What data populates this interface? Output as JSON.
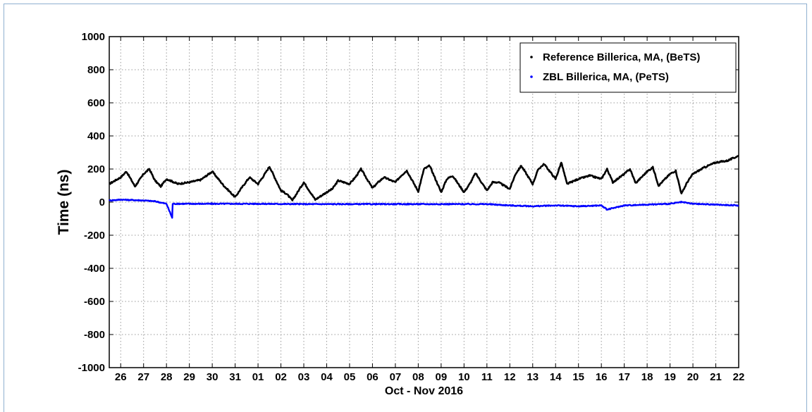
{
  "chart_data": {
    "type": "line",
    "title": "",
    "xlabel": "Oct - Nov 2016",
    "ylabel": "Time (ns)",
    "ylim": [
      -1000,
      1000
    ],
    "y_ticks": [
      1000,
      800,
      600,
      400,
      200,
      0,
      -200,
      -400,
      -600,
      -800,
      -1000
    ],
    "x_tick_labels": [
      "26",
      "27",
      "28",
      "29",
      "30",
      "31",
      "01",
      "02",
      "03",
      "04",
      "05",
      "06",
      "07",
      "08",
      "09",
      "10",
      "11",
      "12",
      "13",
      "14",
      "15",
      "16",
      "17",
      "18",
      "19",
      "20",
      "21",
      "22"
    ],
    "x_range_days": [
      "2016-10-25 12:00",
      "2016-11-22"
    ],
    "grid": true,
    "legend_position": "top-right",
    "series": [
      {
        "name": "Reference Billerica, MA, (BeTS)",
        "color": "#000000",
        "marker": "dot",
        "x": [
          "2016-10-25 12:00",
          "2016-10-26",
          "2016-10-26 06:00",
          "2016-10-26 15:00",
          "2016-10-27",
          "2016-10-27 06:00",
          "2016-10-27 12:00",
          "2016-10-27 18:00",
          "2016-10-28",
          "2016-10-28 12:00",
          "2016-10-29",
          "2016-10-29 12:00",
          "2016-10-29 18:00",
          "2016-10-30",
          "2016-10-30 12:00",
          "2016-10-31",
          "2016-10-31 06:00",
          "2016-10-31 15:00",
          "2016-11-01",
          "2016-11-01 06:00",
          "2016-11-01 12:00",
          "2016-11-02",
          "2016-11-02 06:00",
          "2016-11-02 12:00",
          "2016-11-03",
          "2016-11-03 12:00",
          "2016-11-04",
          "2016-11-04 06:00",
          "2016-11-04 12:00",
          "2016-11-05",
          "2016-11-05 06:00",
          "2016-11-05 12:00",
          "2016-11-06",
          "2016-11-06 06:00",
          "2016-11-06 12:00",
          "2016-11-07",
          "2016-11-07 06:00",
          "2016-11-07 12:00",
          "2016-11-08",
          "2016-11-08 06:00",
          "2016-11-08 12:00",
          "2016-11-09",
          "2016-11-09 06:00",
          "2016-11-09 12:00",
          "2016-11-10",
          "2016-11-10 06:00",
          "2016-11-10 12:00",
          "2016-11-11",
          "2016-11-11 06:00",
          "2016-11-11 12:00",
          "2016-11-12",
          "2016-11-12 06:00",
          "2016-11-12 12:00",
          "2016-11-13",
          "2016-11-13 06:00",
          "2016-11-13 12:00",
          "2016-11-14",
          "2016-11-14 06:00",
          "2016-11-14 12:00",
          "2016-11-15",
          "2016-11-15 12:00",
          "2016-11-16",
          "2016-11-16 06:00",
          "2016-11-16 12:00",
          "2016-11-17",
          "2016-11-17 06:00",
          "2016-11-17 12:00",
          "2016-11-18",
          "2016-11-18 06:00",
          "2016-11-18 12:00",
          "2016-11-19",
          "2016-11-19 06:00",
          "2016-11-19 12:00",
          "2016-11-19 18:00",
          "2016-11-20",
          "2016-11-20 12:00",
          "2016-11-21",
          "2016-11-21 12:00",
          "2016-11-22"
        ],
        "values": [
          110,
          150,
          185,
          95,
          170,
          200,
          130,
          95,
          140,
          110,
          120,
          135,
          160,
          185,
          100,
          30,
          80,
          150,
          110,
          160,
          215,
          70,
          50,
          10,
          120,
          15,
          60,
          80,
          130,
          110,
          150,
          200,
          85,
          120,
          150,
          120,
          160,
          190,
          65,
          200,
          220,
          60,
          140,
          160,
          60,
          110,
          175,
          70,
          120,
          120,
          80,
          170,
          220,
          110,
          200,
          230,
          140,
          240,
          110,
          140,
          160,
          140,
          200,
          120,
          170,
          200,
          115,
          185,
          210,
          100,
          170,
          190,
          50,
          120,
          170,
          210,
          240,
          250,
          280
        ]
      },
      {
        "name": "ZBL Billerica, MA, (PeTS)",
        "color": "#0000ff",
        "marker": "dot",
        "x": [
          "2016-10-25 12:00",
          "2016-10-26",
          "2016-10-27",
          "2016-10-27 12:00",
          "2016-10-28",
          "2016-10-28 06:00",
          "2016-10-28 06:30",
          "2016-10-29",
          "2016-10-30",
          "2016-11-01",
          "2016-11-03",
          "2016-11-05",
          "2016-11-07",
          "2016-11-09",
          "2016-11-11",
          "2016-11-12",
          "2016-11-13",
          "2016-11-14",
          "2016-11-15",
          "2016-11-16",
          "2016-11-16 06:00",
          "2016-11-17",
          "2016-11-18",
          "2016-11-19",
          "2016-11-19 12:00",
          "2016-11-20",
          "2016-11-21",
          "2016-11-22"
        ],
        "values": [
          10,
          15,
          10,
          5,
          -10,
          -95,
          -10,
          -10,
          -10,
          -10,
          -12,
          -12,
          -12,
          -12,
          -12,
          -20,
          -25,
          -20,
          -25,
          -20,
          -45,
          -20,
          -15,
          -10,
          0,
          -10,
          -15,
          -20
        ]
      }
    ]
  }
}
